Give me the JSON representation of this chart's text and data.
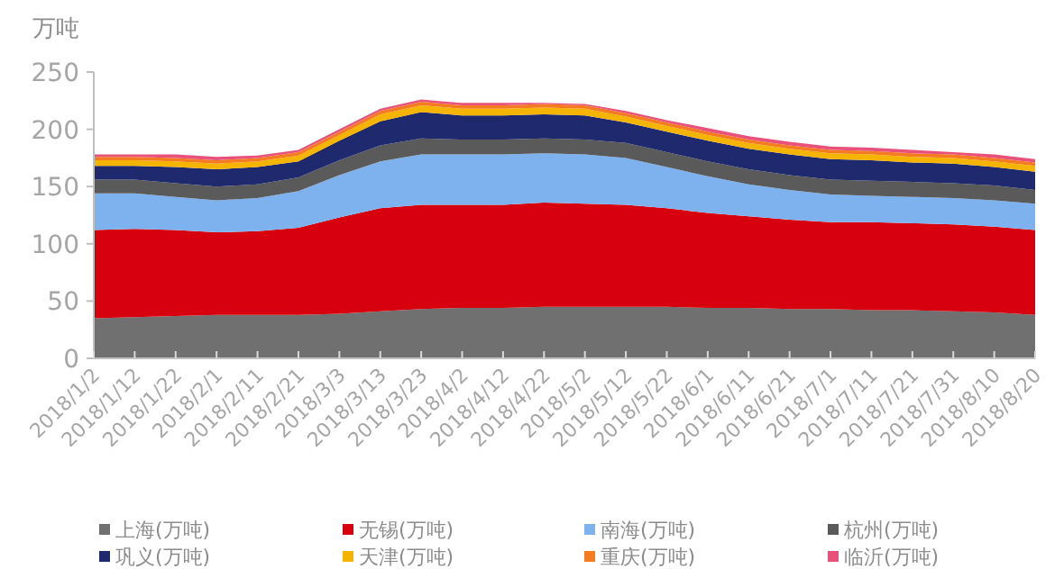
{
  "chart_data": {
    "type": "area",
    "stacked": true,
    "ylabel": "万吨",
    "legend": "bottom",
    "categories": [
      "2018/1/2",
      "2018/1/12",
      "2018/1/22",
      "2018/2/1",
      "2018/2/11",
      "2018/2/21",
      "2018/3/3",
      "2018/3/13",
      "2018/3/23",
      "2018/4/2",
      "2018/4/12",
      "2018/4/22",
      "2018/5/2",
      "2018/5/12",
      "2018/5/22",
      "2018/6/1",
      "2018/6/11",
      "2018/6/21",
      "2018/7/1",
      "2018/7/11",
      "2018/7/21",
      "2018/7/31",
      "2018/8/10",
      "2018/8/20"
    ],
    "ylim": [
      0,
      250
    ],
    "yticks": [
      0,
      50,
      100,
      150,
      200,
      250
    ],
    "series": [
      {
        "name": "上海(万吨)",
        "color": "#707070",
        "values": [
          35,
          36,
          37,
          38,
          38,
          38,
          39,
          41,
          43,
          44,
          44,
          45,
          45,
          45,
          45,
          44,
          44,
          43,
          43,
          42,
          42,
          41,
          40,
          38
        ]
      },
      {
        "name": "无锡(万吨)",
        "color": "#d7000f",
        "values": [
          77,
          77,
          75,
          72,
          73,
          76,
          84,
          90,
          91,
          90,
          90,
          91,
          90,
          89,
          86,
          83,
          80,
          78,
          76,
          77,
          76,
          76,
          75,
          74
        ]
      },
      {
        "name": "南海(万吨)",
        "color": "#7eb2ee",
        "values": [
          32,
          31,
          29,
          28,
          29,
          32,
          37,
          41,
          44,
          44,
          44,
          43,
          43,
          41,
          36,
          32,
          28,
          26,
          24,
          23,
          23,
          23,
          23,
          23
        ]
      },
      {
        "name": "杭州(万吨)",
        "color": "#5a5a5a",
        "values": [
          12,
          12,
          12,
          12,
          12,
          12,
          13,
          14,
          14,
          13,
          13,
          13,
          13,
          13,
          13,
          13,
          13,
          13,
          13,
          13,
          13,
          13,
          13,
          12
        ]
      },
      {
        "name": "巩义(万吨)",
        "color": "#1f2a6e",
        "values": [
          12,
          12,
          14,
          15,
          15,
          14,
          17,
          21,
          23,
          21,
          21,
          21,
          21,
          18,
          18,
          18,
          18,
          18,
          18,
          18,
          17,
          17,
          16,
          16
        ]
      },
      {
        "name": "天津(万吨)",
        "color": "#f5b400",
        "values": [
          5,
          5,
          5,
          5,
          5,
          5,
          5,
          6,
          6,
          6,
          6,
          6,
          6,
          5,
          5,
          5,
          5,
          5,
          5,
          5,
          5,
          5,
          5,
          5
        ]
      },
      {
        "name": "重庆(万吨)",
        "color": "#f47b20",
        "values": [
          3,
          3,
          3,
          3,
          3,
          3,
          3,
          3,
          3,
          3,
          3,
          3,
          3,
          3,
          3,
          3,
          3,
          3,
          3,
          3,
          3,
          3,
          3,
          3
        ]
      },
      {
        "name": "临沂(万吨)",
        "color": "#e8527a",
        "values": [
          2,
          2,
          3,
          3,
          2,
          2,
          2,
          2,
          2,
          2,
          2,
          1,
          1,
          2,
          2,
          3,
          3,
          3,
          3,
          3,
          3,
          2,
          3,
          3
        ]
      }
    ]
  }
}
